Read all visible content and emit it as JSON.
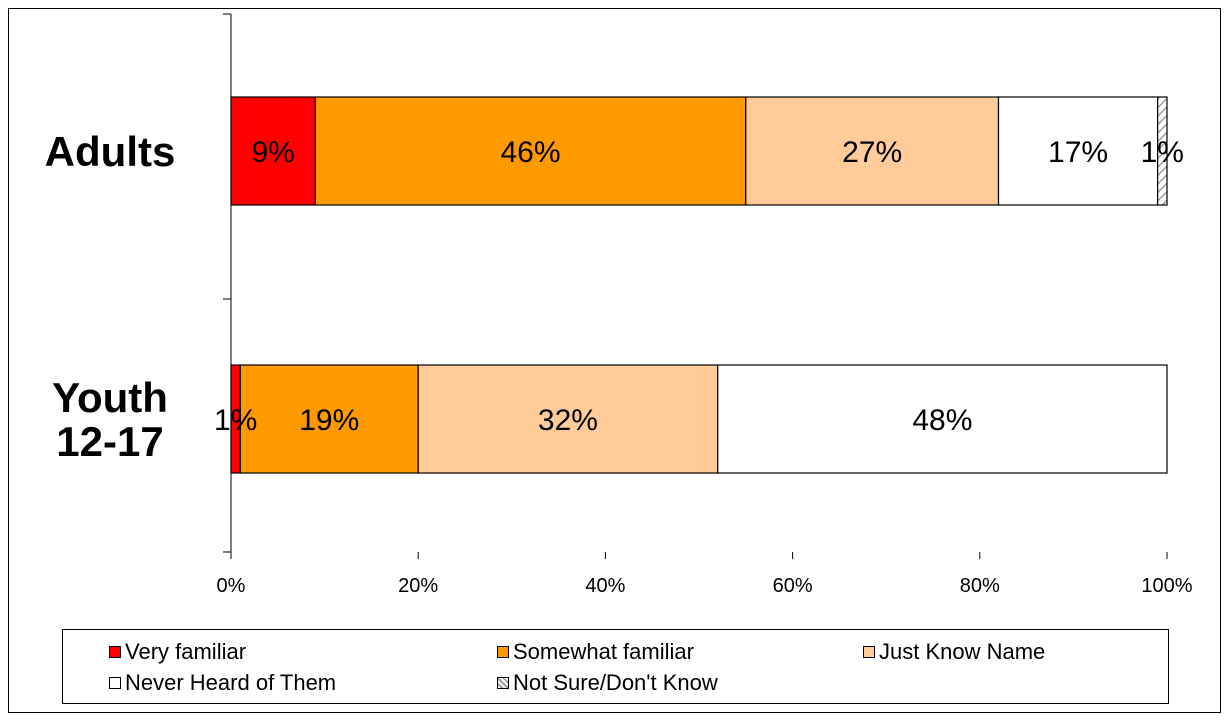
{
  "chart_data": {
    "type": "bar",
    "orientation": "horizontal",
    "stacked": true,
    "categories": [
      "Adults",
      "Youth 12-17"
    ],
    "series": [
      {
        "name": "Very familiar",
        "values": [
          9,
          1
        ],
        "labels": [
          "9%",
          "1%"
        ],
        "color": "#ff0000"
      },
      {
        "name": "Somewhat familiar",
        "values": [
          46,
          19
        ],
        "labels": [
          "46%",
          "19%"
        ],
        "color": "#ff9900"
      },
      {
        "name": "Just Know Name",
        "values": [
          27,
          32
        ],
        "labels": [
          "27%",
          "32%"
        ],
        "color": "#ffcc99"
      },
      {
        "name": "Never Heard of Them",
        "values": [
          17,
          48
        ],
        "labels": [
          "17%",
          "48%"
        ],
        "color": "#ffffff"
      },
      {
        "name": "Not Sure/Don't Know",
        "values": [
          1,
          0
        ],
        "labels": [
          "1%",
          ""
        ],
        "color": "#c0c0c0",
        "pattern": "hatched"
      }
    ],
    "xlim": [
      0,
      100
    ],
    "xticks": [
      "0%",
      "20%",
      "40%",
      "60%",
      "80%",
      "100%"
    ],
    "title": "",
    "xlabel": "",
    "ylabel": "",
    "grid": false,
    "legend_position": "bottom"
  }
}
